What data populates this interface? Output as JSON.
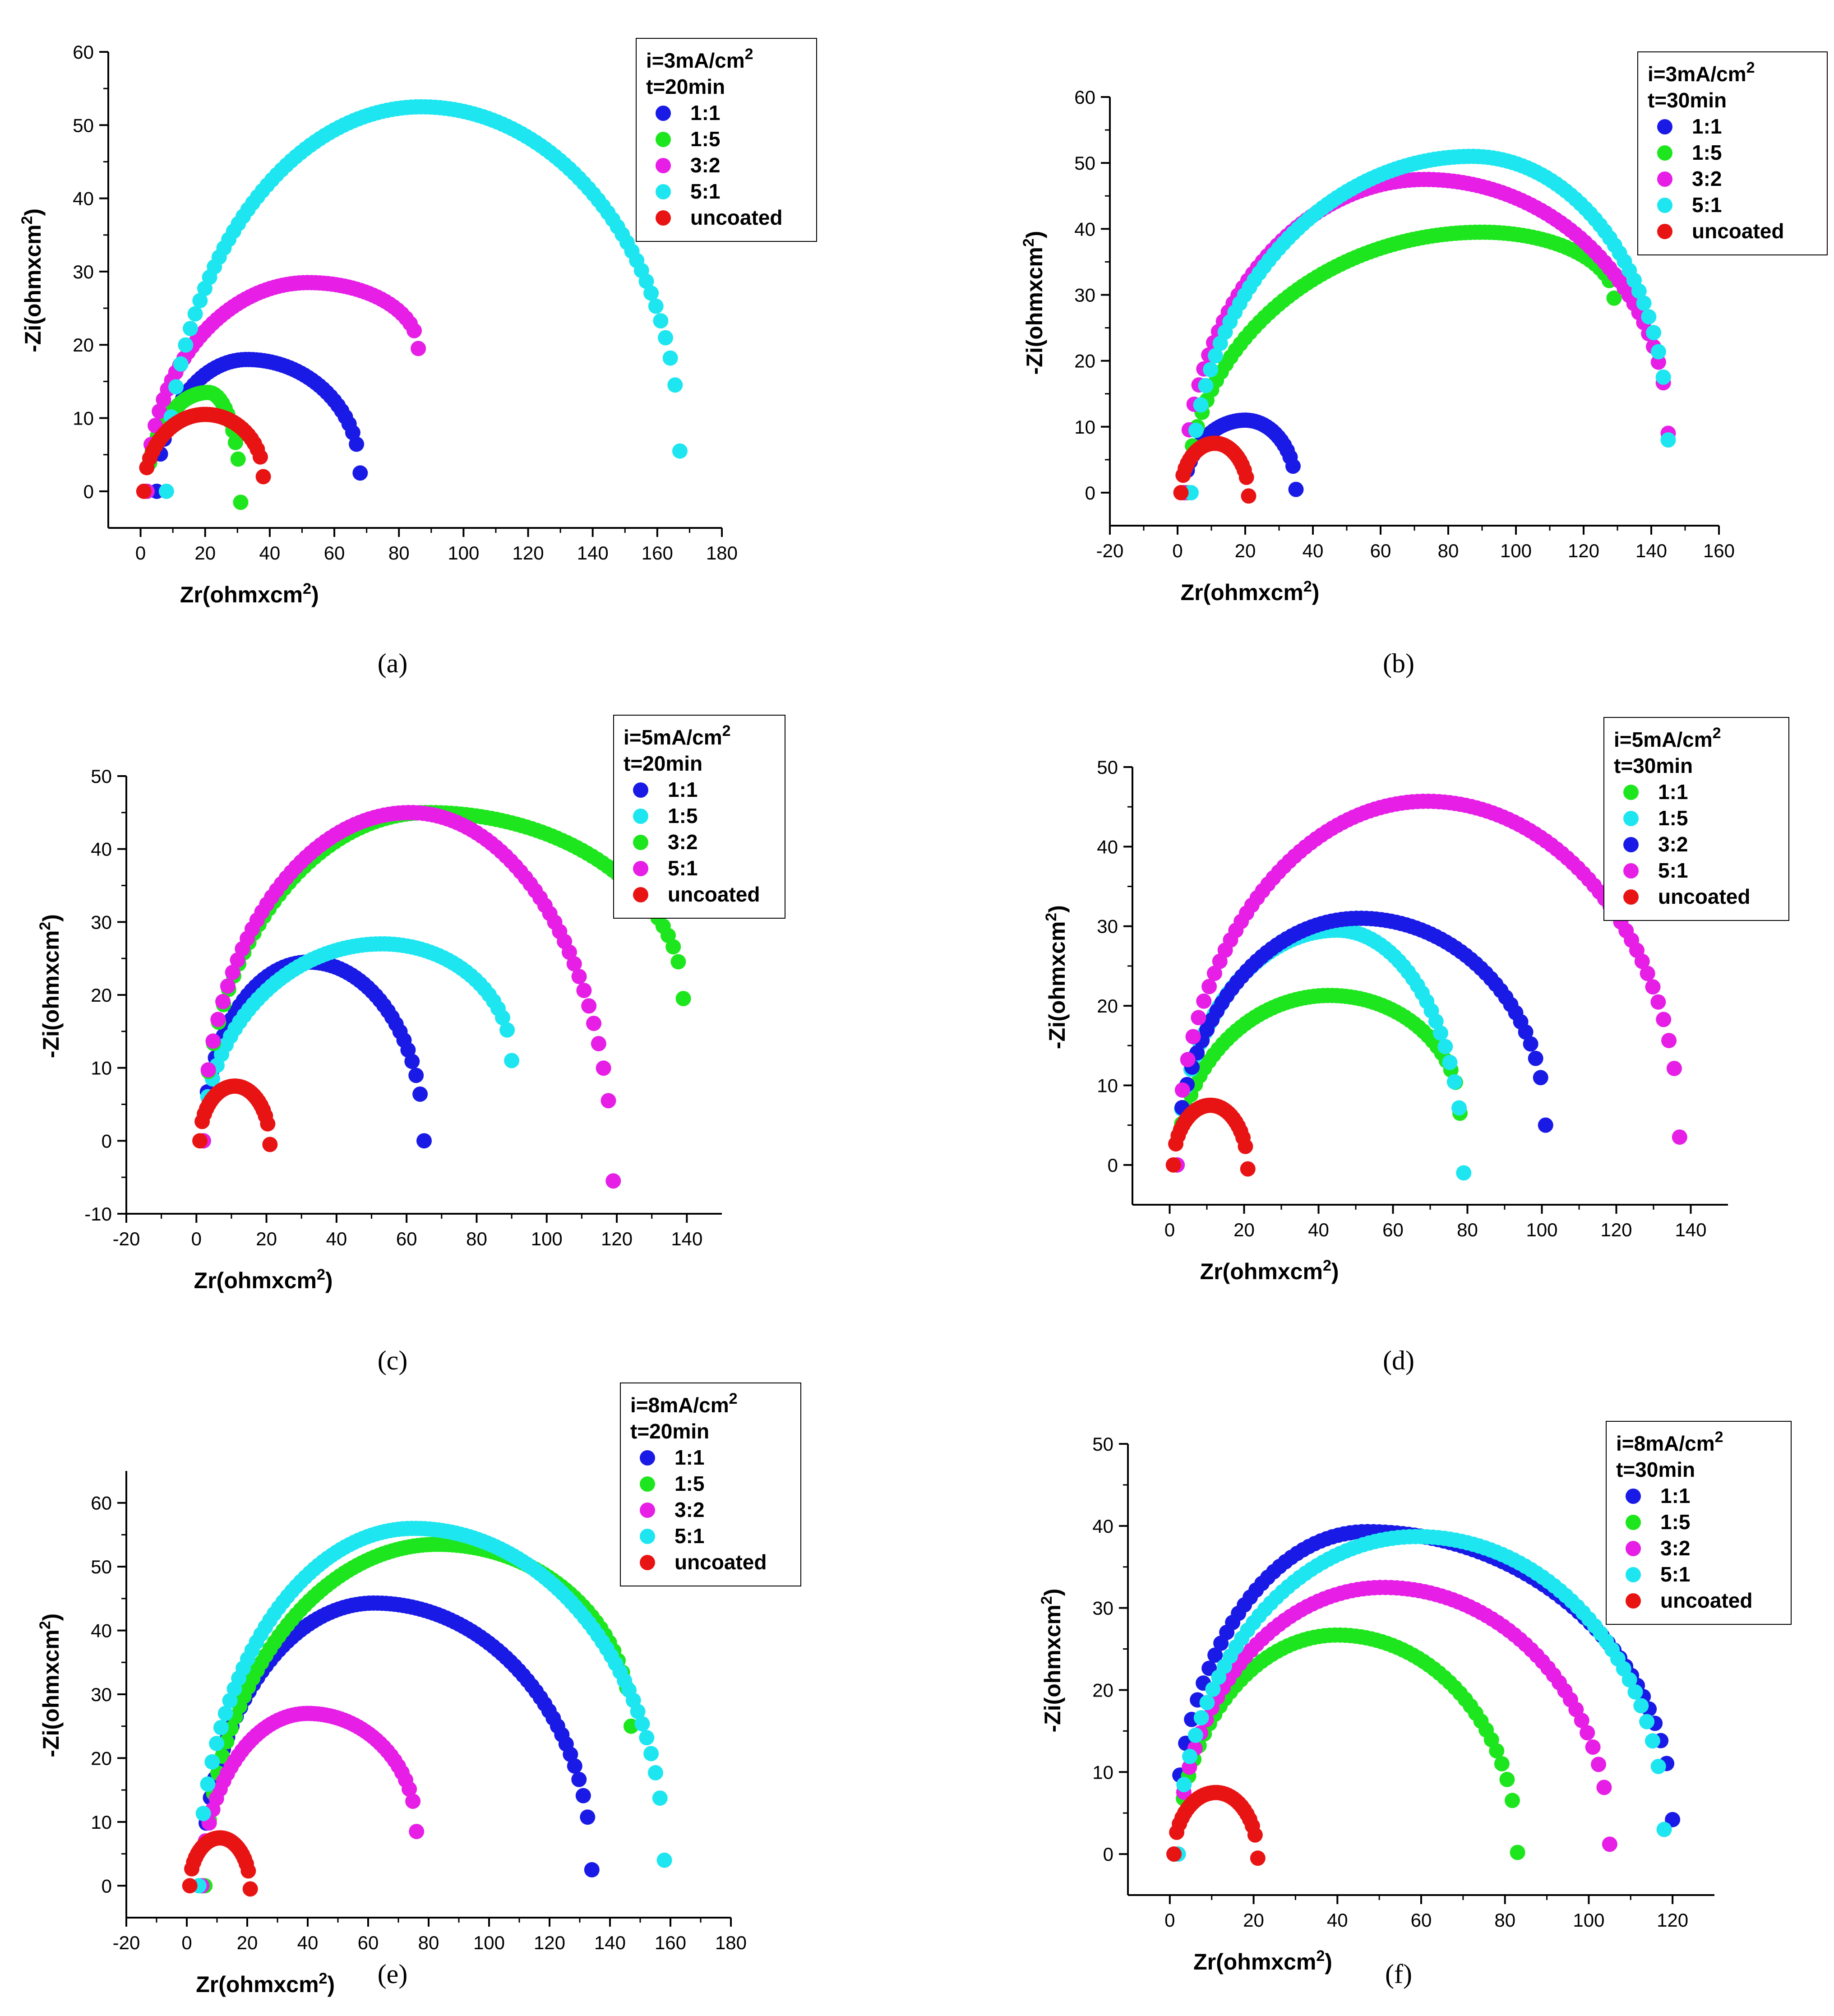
{
  "colors": {
    "blue": "#1a1ae6",
    "green": "#1ee61e",
    "magenta": "#e61ee6",
    "cyan": "#1ee6f0",
    "red": "#e81414"
  },
  "chart_data": [
    {
      "panel": "a",
      "type": "scatter",
      "caption": "(a)",
      "xlabel": "Zr(ohmxcm²)",
      "ylabel": "-Zi(ohmxcm²)",
      "xlim": [
        -10,
        180
      ],
      "ylim": [
        -5,
        60
      ],
      "xticks": [
        0,
        20,
        40,
        60,
        80,
        100,
        120,
        140,
        160,
        180
      ],
      "yticks": [
        0,
        10,
        20,
        30,
        40,
        50,
        60
      ],
      "legend_title": [
        "i=3mA/cm²",
        "t=20min"
      ],
      "series": [
        {
          "name": "1:1",
          "color": "blue",
          "start": 5,
          "end": 68,
          "peak_x": 33,
          "peak_y": 18,
          "end_y": 2.5
        },
        {
          "name": "1:5",
          "color": "green",
          "start": 2,
          "end": 31,
          "peak_x": 21,
          "peak_y": 13.5,
          "end_y": -1.5
        },
        {
          "name": "3:2",
          "color": "magenta",
          "start": 2,
          "end": 86,
          "peak_x": 52,
          "peak_y": 28.5,
          "end_y": 19.5
        },
        {
          "name": "5:1",
          "color": "cyan",
          "start": 8,
          "end": 167,
          "peak_x": 87,
          "peak_y": 52.5,
          "end_y": 5.5
        },
        {
          "name": "uncoated",
          "color": "red",
          "start": 1,
          "end": 38,
          "peak_x": 20,
          "peak_y": 10.5,
          "end_y": 2
        }
      ]
    },
    {
      "panel": "b",
      "type": "scatter",
      "caption": "(b)",
      "xlabel": "Zr(ohmxcm²)",
      "ylabel": "-Zi(ohmxcm²)",
      "xlim": [
        -20,
        160
      ],
      "ylim": [
        -5,
        60
      ],
      "xticks": [
        -20,
        0,
        20,
        40,
        60,
        80,
        100,
        120,
        140,
        160
      ],
      "yticks": [
        0,
        10,
        20,
        30,
        40,
        50,
        60
      ],
      "legend_title": [
        "i=3mA/cm²",
        "t=30min"
      ],
      "series": [
        {
          "name": "1:1",
          "color": "blue",
          "start": 2,
          "end": 35,
          "peak_x": 20,
          "peak_y": 11,
          "end_y": 0.5
        },
        {
          "name": "1:5",
          "color": "green",
          "start": 3,
          "end": 129,
          "peak_x": 90,
          "peak_y": 39.5,
          "end_y": 29.5
        },
        {
          "name": "3:2",
          "color": "magenta",
          "start": 2,
          "end": 145,
          "peak_x": 73,
          "peak_y": 47.5,
          "end_y": 9
        },
        {
          "name": "5:1",
          "color": "cyan",
          "start": 4,
          "end": 145,
          "peak_x": 87,
          "peak_y": 51,
          "end_y": 8
        },
        {
          "name": "uncoated",
          "color": "red",
          "start": 1,
          "end": 21,
          "peak_x": 11,
          "peak_y": 7.5,
          "end_y": -0.5
        }
      ]
    },
    {
      "panel": "c",
      "type": "scatter",
      "caption": "(c)",
      "xlabel": "Zr(ohmxcm²)",
      "ylabel": "-Zi(ohmxcm²)",
      "xlim": [
        -20,
        150
      ],
      "ylim": [
        -10,
        50
      ],
      "xticks": [
        -20,
        0,
        20,
        40,
        60,
        80,
        100,
        120,
        140
      ],
      "yticks": [
        -10,
        0,
        10,
        20,
        30,
        40,
        50
      ],
      "legend_title": [
        "i=5mA/cm²",
        "t=20min"
      ],
      "series": [
        {
          "name": "1:1",
          "color": "blue",
          "start": 2,
          "end": 65,
          "peak_x": 32,
          "peak_y": 24.5,
          "end_y": 0
        },
        {
          "name": "1:5",
          "color": "cyan",
          "start": 2,
          "end": 90,
          "peak_x": 53,
          "peak_y": 27,
          "end_y": 11
        },
        {
          "name": "3:2",
          "color": "green",
          "start": 2,
          "end": 139,
          "peak_x": 66,
          "peak_y": 45,
          "end_y": 19.5
        },
        {
          "name": "5:1",
          "color": "magenta",
          "start": 2,
          "end": 119,
          "peak_x": 61,
          "peak_y": 45,
          "end_y": -5.5
        },
        {
          "name": "uncoated",
          "color": "red",
          "start": 1,
          "end": 21,
          "peak_x": 11,
          "peak_y": 7.5,
          "end_y": -0.5
        }
      ]
    },
    {
      "panel": "d",
      "type": "scatter",
      "caption": "(d)",
      "xlabel": "Zr(ohmxcm²)",
      "ylabel": "-Zi(ohmxcm²)",
      "xlim": [
        -10,
        150
      ],
      "ylim": [
        -5,
        50
      ],
      "xticks": [
        0,
        20,
        40,
        60,
        80,
        100,
        120,
        140
      ],
      "yticks": [
        0,
        10,
        20,
        30,
        40,
        50
      ],
      "legend_title": [
        "i=5mA/cm²",
        "t=30min"
      ],
      "series": [
        {
          "name": "1:1",
          "color": "green",
          "start": 2,
          "end": 78,
          "peak_x": 43,
          "peak_y": 21.3,
          "end_y": 6.5
        },
        {
          "name": "1:5",
          "color": "cyan",
          "start": 2,
          "end": 79,
          "peak_x": 45,
          "peak_y": 29.5,
          "end_y": -1
        },
        {
          "name": "3:2",
          "color": "blue",
          "start": 2,
          "end": 101,
          "peak_x": 51,
          "peak_y": 31,
          "end_y": 5
        },
        {
          "name": "5:1",
          "color": "magenta",
          "start": 2,
          "end": 137,
          "peak_x": 69,
          "peak_y": 45.7,
          "end_y": 3.5
        },
        {
          "name": "uncoated",
          "color": "red",
          "start": 1,
          "end": 21,
          "peak_x": 11,
          "peak_y": 7.5,
          "end_y": -0.5
        }
      ]
    },
    {
      "panel": "e",
      "type": "scatter",
      "caption": "(e)",
      "xlabel": "Zr(ohmxcm²)",
      "ylabel": "-Zi(ohmxcm²)",
      "xlim": [
        -20,
        180
      ],
      "ylim": [
        -5,
        65
      ],
      "xticks": [
        -20,
        0,
        20,
        40,
        60,
        80,
        100,
        120,
        140,
        160,
        180
      ],
      "yticks": [
        0,
        10,
        20,
        30,
        40,
        50,
        60
      ],
      "legend_title": [
        "i=8mA/cm²",
        "t=20min"
      ],
      "series": [
        {
          "name": "1:1",
          "color": "blue",
          "start": 5,
          "end": 134,
          "peak_x": 62,
          "peak_y": 44.3,
          "end_y": 2.5
        },
        {
          "name": "1:5",
          "color": "green",
          "start": 6,
          "end": 147,
          "peak_x": 83,
          "peak_y": 53.5,
          "end_y": 25
        },
        {
          "name": "3:2",
          "color": "magenta",
          "start": 5,
          "end": 76,
          "peak_x": 40,
          "peak_y": 27,
          "end_y": 8.5
        },
        {
          "name": "5:1",
          "color": "cyan",
          "start": 4,
          "end": 158,
          "peak_x": 75,
          "peak_y": 56,
          "end_y": 4
        },
        {
          "name": "uncoated",
          "color": "red",
          "start": 1,
          "end": 21,
          "peak_x": 11,
          "peak_y": 7.5,
          "end_y": -0.5
        }
      ]
    },
    {
      "panel": "f",
      "type": "scatter",
      "caption": "(f)",
      "xlabel": "Zr(ohmxcm²)",
      "ylabel": "-Zi(ohmxcm²)",
      "xlim": [
        -10,
        130
      ],
      "ylim": [
        -5,
        50
      ],
      "xticks": [
        0,
        20,
        40,
        60,
        80,
        100,
        120
      ],
      "yticks": [
        0,
        10,
        20,
        30,
        40,
        50
      ],
      "legend_title": [
        "i=8mA/cm²",
        "t=30min"
      ],
      "series": [
        {
          "name": "1:1",
          "color": "blue",
          "start": 1,
          "end": 120,
          "peak_x": 47,
          "peak_y": 39.3,
          "end_y": 4.2
        },
        {
          "name": "1:5",
          "color": "green",
          "start": 2,
          "end": 83,
          "peak_x": 40,
          "peak_y": 26.7,
          "end_y": 0.2
        },
        {
          "name": "3:2",
          "color": "magenta",
          "start": 2,
          "end": 105,
          "peak_x": 51,
          "peak_y": 32.5,
          "end_y": 1.2
        },
        {
          "name": "5:1",
          "color": "cyan",
          "start": 2,
          "end": 118,
          "peak_x": 59,
          "peak_y": 38.7,
          "end_y": 3
        },
        {
          "name": "uncoated",
          "color": "red",
          "start": 1,
          "end": 21,
          "peak_x": 11,
          "peak_y": 7.5,
          "end_y": -0.5
        }
      ]
    }
  ]
}
